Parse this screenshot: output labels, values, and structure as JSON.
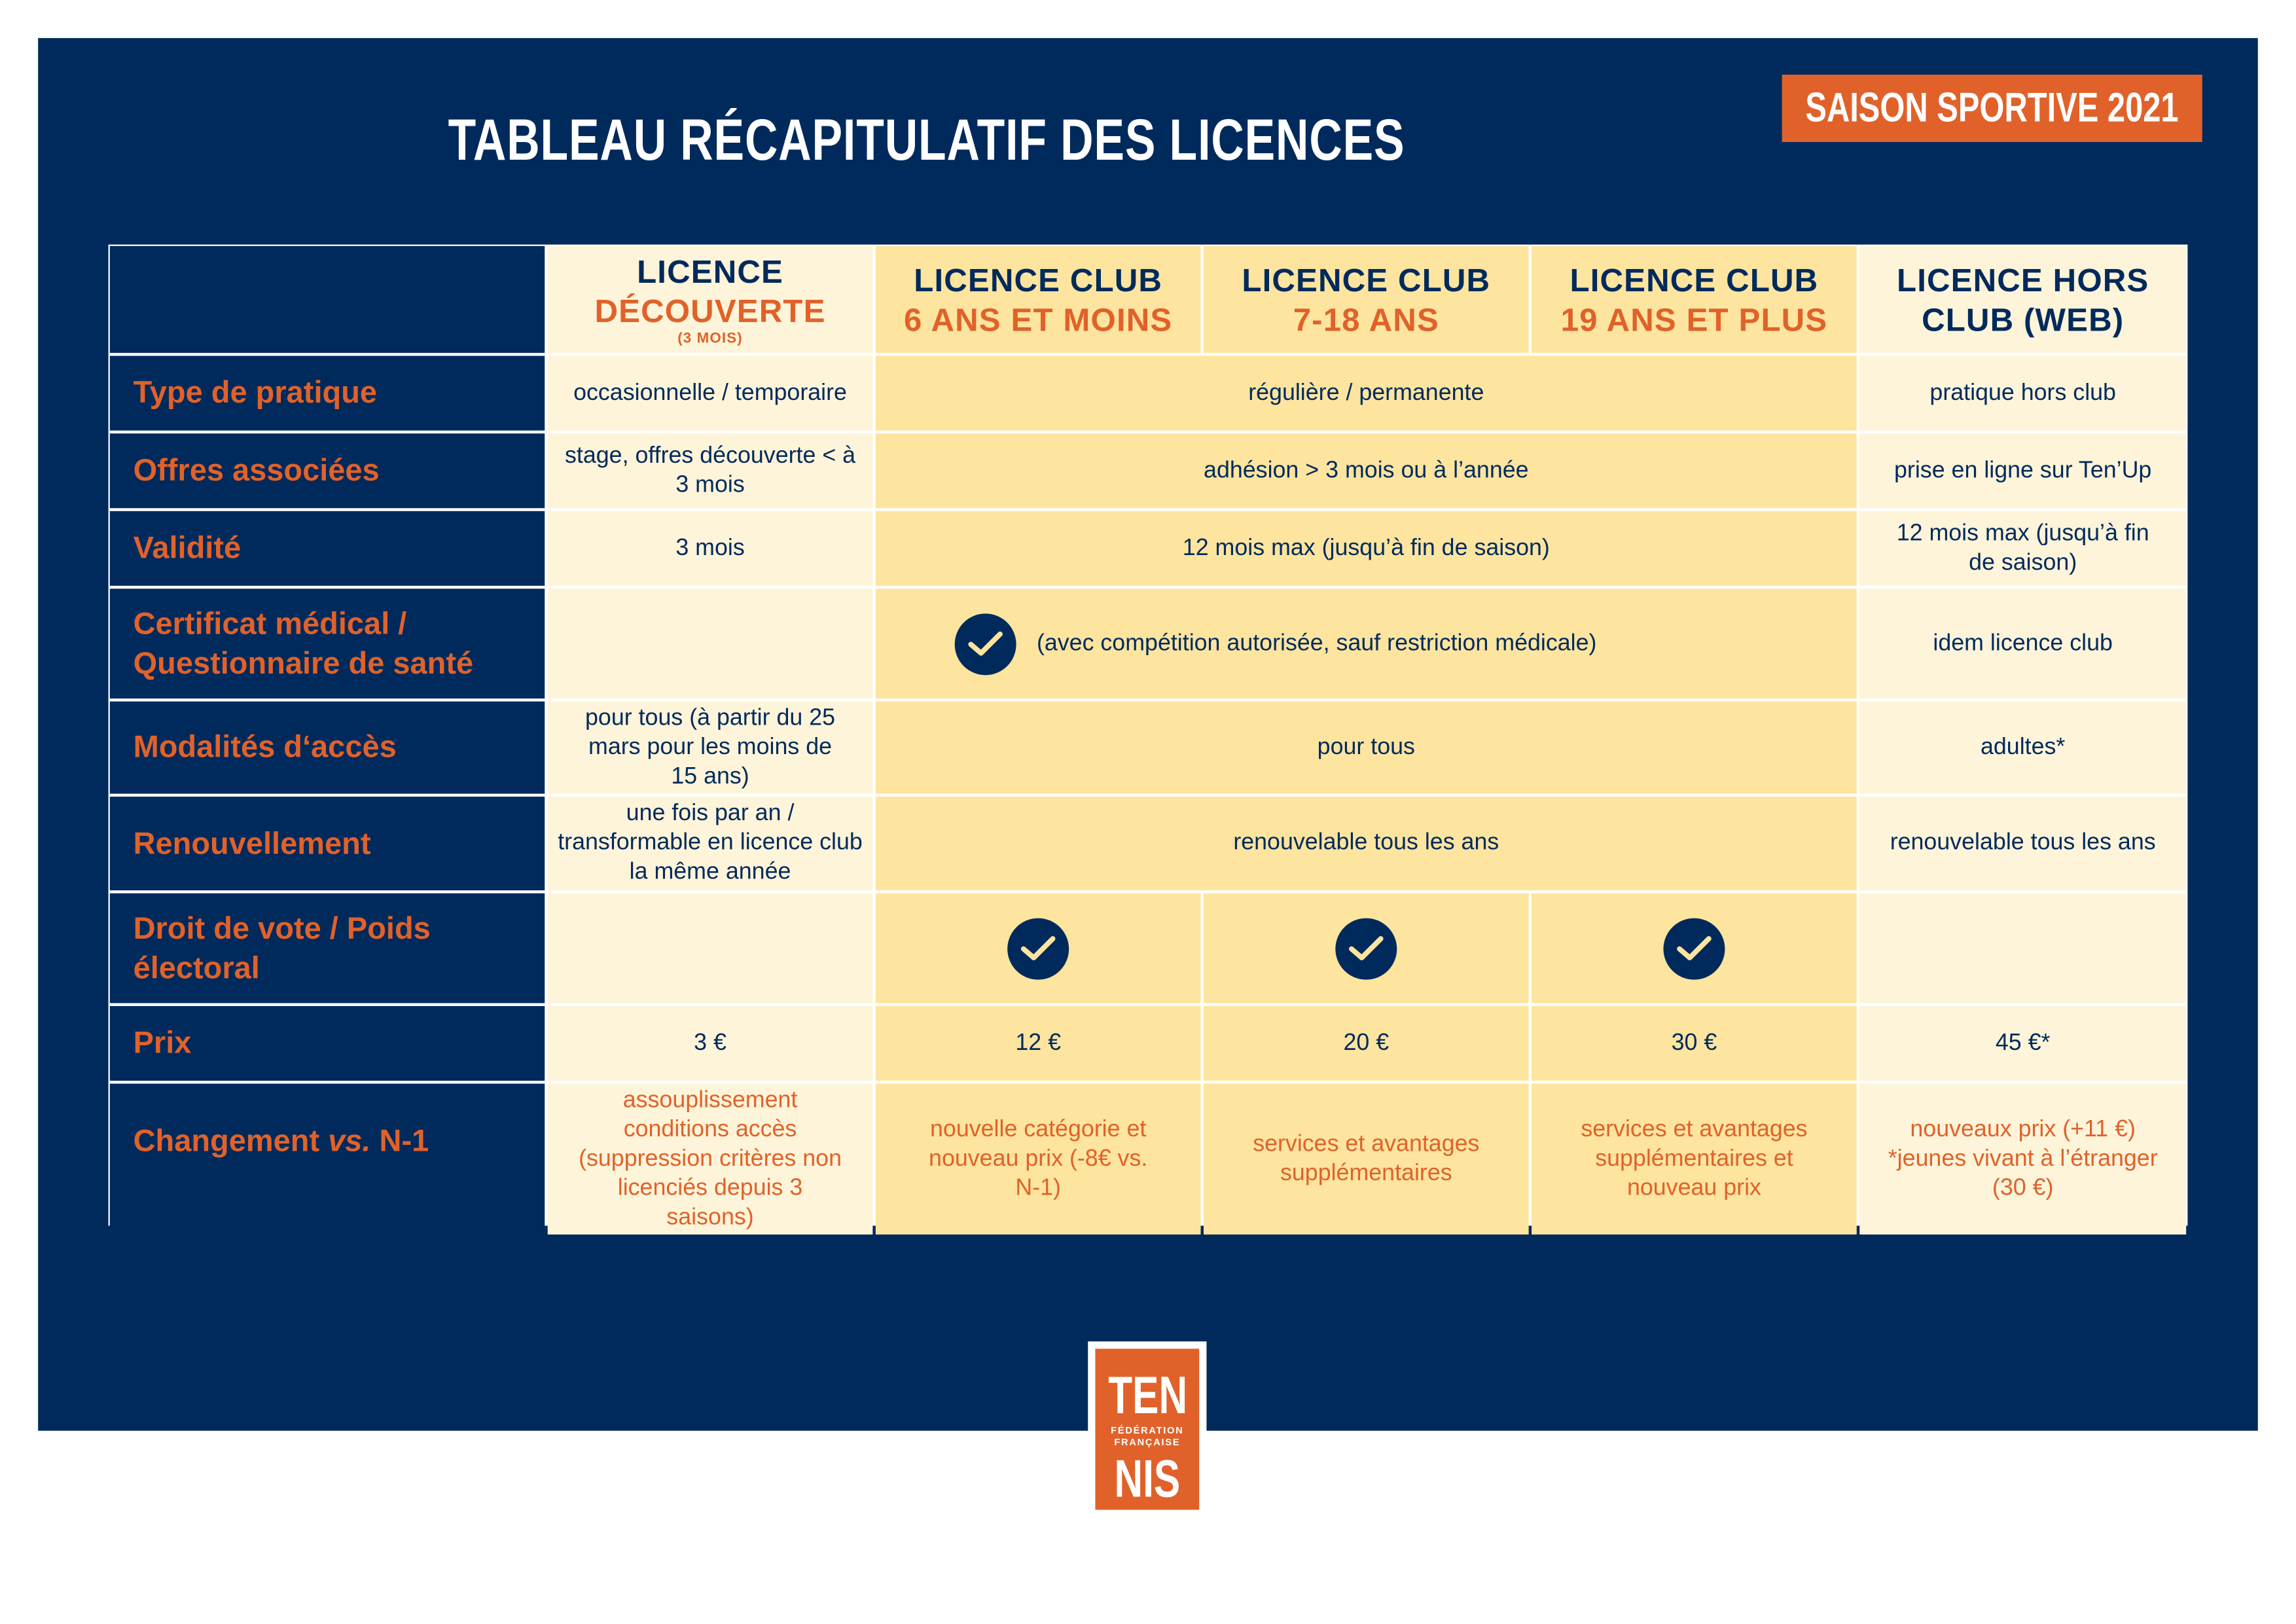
{
  "title": "TABLEAU RÉCAPITULATIF DES LICENCES",
  "badge": "SAISON SPORTIVE 2021",
  "colors": {
    "navy": "#002a5c",
    "orange": "#e0622a",
    "cream": "#fef4d9",
    "yellow": "#fde49f"
  },
  "columns": [
    {
      "line1": "LICENCE",
      "line2": "DÉCOUVERTE",
      "note": "(3 MOIS)"
    },
    {
      "line1": "LICENCE CLUB",
      "line2": "6 ANS ET MOINS"
    },
    {
      "line1": "LICENCE CLUB",
      "line2": "7-18 ANS"
    },
    {
      "line1": "LICENCE CLUB",
      "line2": "19 ANS ET PLUS"
    },
    {
      "line1": "LICENCE HORS",
      "line2": "CLUB (WEB)"
    }
  ],
  "rows": {
    "type": {
      "label": "Type de pratique",
      "decouverte": "occasionnelle / temporaire",
      "club": "régulière / permanente",
      "web": "pratique hors club"
    },
    "offres": {
      "label": "Offres associées",
      "decouverte": "stage, offres découverte < à 3 mois",
      "club": "adhésion > 3 mois ou à l’année",
      "web": "prise en ligne sur Ten’Up"
    },
    "validite": {
      "label": "Validité",
      "decouverte": "3 mois",
      "club": "12 mois max (jusqu’à fin de saison)",
      "web": "12 mois max (jusqu’à fin de saison)"
    },
    "certificat": {
      "label": "Certificat médical / Questionnaire de santé",
      "decouverte": "",
      "club": "(avec compétition autorisée, sauf restriction médicale)",
      "web": "idem licence club"
    },
    "modalites": {
      "label": "Modalités d‘accès",
      "decouverte": "pour tous (à partir du 25 mars pour les moins de 15 ans)",
      "club": "pour tous",
      "web": "adultes*"
    },
    "renouvellement": {
      "label": "Renouvellement",
      "decouverte": "une fois par an / transformable en licence club la même année",
      "club": "renouvelable tous les ans",
      "web": "renouvelable tous les ans"
    },
    "vote": {
      "label": "Droit de vote / Poids électoral",
      "checks": [
        false,
        true,
        true,
        true,
        false
      ]
    },
    "prix": {
      "label": "Prix",
      "values": [
        "3 €",
        "12 €",
        "20 €",
        "30 €",
        "45 €*"
      ]
    },
    "changement": {
      "label_a": "Changement ",
      "label_b": "vs.",
      "label_c": " N-1",
      "values": [
        "assouplissement conditions accès (suppression critères non licenciés depuis 3 saisons)",
        "nouvelle catégorie et nouveau prix (-8€ vs. N-1)",
        "services et avantages supplémentaires",
        "services et avantages supplémentaires et nouveau prix",
        "nouveaux prix (+11 €) *jeunes vivant à l’étranger (30 €)"
      ]
    }
  },
  "logo": {
    "top": "TEN",
    "middle": "FÉDÉRATION FRANÇAISE",
    "bottom": "NIS"
  }
}
